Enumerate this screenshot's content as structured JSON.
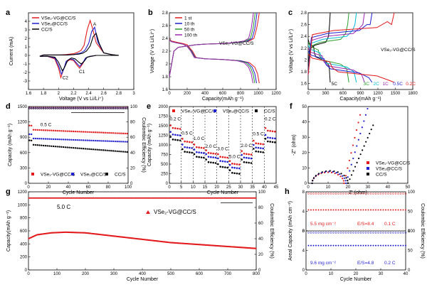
{
  "chart_data": [
    {
      "id": "a",
      "type": "line",
      "panel_label": "a",
      "xlabel": "Voltage (V vs Li/Li⁺)",
      "ylabel": "Current (mA)",
      "xlim": [
        1.6,
        3.0
      ],
      "ylim": [
        -4,
        5
      ],
      "xticks": [
        1.6,
        1.8,
        2.0,
        2.2,
        2.4,
        2.6,
        2.8,
        3.0
      ],
      "yticks": [
        -3,
        -2,
        -1,
        0,
        1,
        2,
        3,
        4
      ],
      "legend_position": "top-left",
      "annotations": [
        {
          "text": "A",
          "x": 2.46,
          "y": 3.5
        },
        {
          "text": "C2",
          "x": 2.05,
          "y": -2.8
        },
        {
          "text": "C1",
          "x": 2.27,
          "y": -2.1
        }
      ],
      "series": [
        {
          "name": "VSe₂-VG@CC/S",
          "color": "#e31a1c",
          "x": [
            1.75,
            1.85,
            1.95,
            2.0,
            2.03,
            2.06,
            2.1,
            2.15,
            2.2,
            2.25,
            2.28,
            2.32,
            2.36,
            2.42,
            2.5,
            2.6,
            2.7,
            2.8,
            2.7,
            2.6,
            2.5,
            2.45,
            2.42,
            2.38,
            2.34,
            2.3,
            2.25,
            2.2,
            2.1,
            2.0,
            1.9,
            1.8,
            1.75
          ],
          "y": [
            -0.1,
            -0.1,
            -0.4,
            -1.5,
            -2.6,
            -1.8,
            -0.8,
            -0.5,
            -0.6,
            -1.2,
            -1.5,
            -1.0,
            -0.3,
            -0.1,
            0,
            0,
            0,
            0,
            0.1,
            0.3,
            1.5,
            3.2,
            4.1,
            3.0,
            1.2,
            0.6,
            0.35,
            0.2,
            0.1,
            0.05,
            0.05,
            0.05,
            -0.1
          ]
        },
        {
          "name": "VSe₂@CC/S",
          "color": "#1f1fd1",
          "x": [
            1.75,
            1.85,
            1.95,
            2.0,
            2.04,
            2.07,
            2.1,
            2.15,
            2.2,
            2.25,
            2.28,
            2.32,
            2.36,
            2.42,
            2.5,
            2.6,
            2.7,
            2.8,
            2.7,
            2.6,
            2.52,
            2.48,
            2.44,
            2.4,
            2.35,
            2.3,
            2.25,
            2.2,
            2.1,
            2.0,
            1.9,
            1.8,
            1.75
          ],
          "y": [
            -0.1,
            -0.1,
            -0.3,
            -1.2,
            -2.2,
            -1.6,
            -0.7,
            -0.4,
            -0.5,
            -1.0,
            -1.3,
            -0.9,
            -0.3,
            -0.1,
            0,
            0,
            0,
            0,
            0.1,
            0.3,
            1.6,
            3.3,
            2.8,
            1.4,
            0.6,
            0.3,
            0.2,
            0.1,
            0.05,
            0.05,
            0.05,
            0.05,
            -0.1
          ]
        },
        {
          "name": "CC/S",
          "color": "#000000",
          "x": [
            1.75,
            1.85,
            1.95,
            2.0,
            2.05,
            2.08,
            2.12,
            2.17,
            2.22,
            2.27,
            2.3,
            2.34,
            2.38,
            2.44,
            2.5,
            2.6,
            2.7,
            2.8,
            2.7,
            2.6,
            2.54,
            2.5,
            2.46,
            2.42,
            2.37,
            2.32,
            2.27,
            2.2,
            2.1,
            2.0,
            1.9,
            1.8,
            1.75
          ],
          "y": [
            -0.1,
            -0.1,
            -0.2,
            -0.8,
            -1.8,
            -1.4,
            -0.6,
            -0.3,
            -0.4,
            -0.8,
            -1.0,
            -0.7,
            -0.2,
            -0.1,
            0,
            0,
            0,
            0,
            0.1,
            0.3,
            1.4,
            2.6,
            2.2,
            1.1,
            0.5,
            0.25,
            0.15,
            0.1,
            0.05,
            0.05,
            0.05,
            0.05,
            -0.1
          ]
        }
      ]
    },
    {
      "id": "b",
      "type": "line",
      "panel_label": "b",
      "xlabel": "Capacity(mAh g⁻¹)",
      "ylabel": "Voltage (V vs Li/Li⁺)",
      "xlim": [
        0,
        1200
      ],
      "ylim": [
        1.6,
        2.8
      ],
      "xticks": [
        0,
        200,
        400,
        600,
        800,
        1000,
        1200
      ],
      "yticks": [
        1.6,
        1.8,
        2.0,
        2.2,
        2.4,
        2.6,
        2.8
      ],
      "legend_position": "top-left",
      "annotations": [
        {
          "text": "VSe₂-VG@CC/S",
          "x": 560,
          "y": 2.3
        }
      ],
      "series": [
        {
          "name": "1 st",
          "color": "#e31a1c",
          "discharge_x": [
            0,
            20,
            80,
            150,
            200,
            260,
            300,
            400,
            600,
            800,
            900,
            960,
            990,
            1010
          ],
          "discharge_y": [
            2.4,
            2.36,
            2.34,
            2.32,
            2.3,
            2.2,
            2.1,
            2.08,
            2.07,
            2.05,
            2.02,
            1.95,
            1.85,
            1.7
          ],
          "charge_x": [
            0,
            50,
            100,
            200,
            300,
            400,
            600,
            800,
            900,
            950,
            980,
            1000,
            1010
          ],
          "charge_y": [
            1.8,
            2.2,
            2.26,
            2.28,
            2.3,
            2.31,
            2.32,
            2.34,
            2.36,
            2.4,
            2.55,
            2.7,
            2.8
          ]
        },
        {
          "name": "10 th",
          "color": "#1f1fd1",
          "discharge_x": [
            0,
            20,
            80,
            150,
            200,
            250,
            290,
            400,
            600,
            800,
            880,
            930,
            960,
            980
          ],
          "discharge_y": [
            2.39,
            2.35,
            2.33,
            2.31,
            2.28,
            2.2,
            2.1,
            2.08,
            2.07,
            2.05,
            2.02,
            1.95,
            1.85,
            1.7
          ],
          "charge_x": [
            0,
            50,
            100,
            200,
            300,
            400,
            600,
            800,
            880,
            930,
            960,
            975,
            985
          ],
          "charge_y": [
            1.8,
            2.2,
            2.26,
            2.28,
            2.3,
            2.31,
            2.32,
            2.34,
            2.36,
            2.4,
            2.55,
            2.7,
            2.8
          ]
        },
        {
          "name": "50 th",
          "color": "#2ca02c",
          "discharge_x": [
            0,
            20,
            80,
            150,
            200,
            245,
            285,
            400,
            600,
            780,
            860,
            910,
            940,
            960
          ],
          "discharge_y": [
            2.39,
            2.35,
            2.33,
            2.31,
            2.28,
            2.2,
            2.1,
            2.08,
            2.07,
            2.05,
            2.02,
            1.95,
            1.85,
            1.7
          ],
          "charge_x": [
            0,
            50,
            100,
            200,
            300,
            400,
            600,
            780,
            860,
            910,
            940,
            955,
            965
          ],
          "charge_y": [
            1.8,
            2.2,
            2.26,
            2.28,
            2.3,
            2.31,
            2.32,
            2.34,
            2.36,
            2.4,
            2.55,
            2.7,
            2.8
          ]
        },
        {
          "name": "100 th",
          "color": "#9c27b0",
          "discharge_x": [
            0,
            20,
            80,
            150,
            195,
            240,
            280,
            400,
            600,
            760,
            840,
            890,
            920,
            940
          ],
          "discharge_y": [
            2.38,
            2.35,
            2.33,
            2.31,
            2.28,
            2.2,
            2.1,
            2.08,
            2.07,
            2.05,
            2.02,
            1.95,
            1.85,
            1.7
          ],
          "charge_x": [
            0,
            50,
            100,
            200,
            300,
            400,
            600,
            760,
            840,
            890,
            920,
            935,
            945
          ],
          "charge_y": [
            1.8,
            2.2,
            2.26,
            2.28,
            2.3,
            2.31,
            2.32,
            2.34,
            2.36,
            2.4,
            2.55,
            2.7,
            2.8
          ]
        }
      ]
    },
    {
      "id": "c",
      "type": "line",
      "panel_label": "c",
      "xlabel": "Capacity(mAh g⁻¹)",
      "ylabel": "Voltage (V vs Li/Li⁺)",
      "xlim": [
        0,
        1800
      ],
      "ylim": [
        1.5,
        2.8
      ],
      "xticks": [
        0,
        300,
        600,
        900,
        1200,
        1500,
        1800
      ],
      "yticks": [
        1.6,
        1.8,
        2.0,
        2.2,
        2.4,
        2.6,
        2.8
      ],
      "annotations": [
        {
          "text": "VSe₂-VG@CC/S",
          "x": 1250,
          "y": 2.15
        }
      ],
      "series": [
        {
          "name": "5C",
          "color": "#000000",
          "cap": 380
        },
        {
          "name": "3C",
          "color": "#2ca02c",
          "cap": 700
        },
        {
          "name": "2C",
          "color": "#00bcd4",
          "cap": 830
        },
        {
          "name": "1C",
          "color": "#9c27b0",
          "cap": 970
        },
        {
          "name": "0.5C",
          "color": "#1f1fd1",
          "cap": 1100
        },
        {
          "name": "0.2C",
          "color": "#e31a1c",
          "cap": 1480
        }
      ]
    },
    {
      "id": "d",
      "type": "scatter",
      "panel_label": "d",
      "xlabel": "Cycle Number",
      "ylabel": "Capacity (mAh g⁻¹)",
      "y2label": "Coulombic Efficiency (%)",
      "xlim": [
        0,
        100
      ],
      "ylim": [
        0,
        1500
      ],
      "y2lim": [
        0,
        100
      ],
      "xticks": [
        0,
        20,
        40,
        60,
        80,
        100
      ],
      "yticks": [
        0,
        300,
        600,
        900,
        1200,
        1500
      ],
      "y2ticks": [
        0,
        20,
        40,
        60,
        80,
        100
      ],
      "annotations": [
        {
          "text": "0.5 C",
          "x": 12,
          "y": 1120
        }
      ],
      "legend_position": "bottom",
      "series": [
        {
          "name": "VSe₂-VG@CC/S",
          "color": "#e31a1c",
          "start": 1050,
          "end": 970,
          "ce": 98.5
        },
        {
          "name": "VSe₂@CC/S",
          "color": "#1f1fd1",
          "start": 880,
          "end": 810,
          "ce": 98
        },
        {
          "name": "CC/S",
          "color": "#000000",
          "start": 760,
          "end": 610,
          "ce": 97.5
        }
      ]
    },
    {
      "id": "e",
      "type": "scatter",
      "panel_label": "e",
      "xlabel": "Cycle Number",
      "ylabel": "Capacity (mAh g⁻¹)",
      "xlim": [
        0,
        45
      ],
      "ylim": [
        0,
        2000
      ],
      "xticks": [
        0,
        5,
        10,
        15,
        20,
        25,
        30,
        35,
        40,
        45
      ],
      "yticks": [
        0,
        250,
        500,
        750,
        1000,
        1250,
        1500,
        1750,
        2000
      ],
      "dashed_lines_x": [
        5,
        10,
        15,
        20,
        25,
        30,
        35,
        40
      ],
      "rate_labels": [
        {
          "text": "0.2 C",
          "x": 2.5,
          "y": 1640
        },
        {
          "text": "0.5 C",
          "x": 7.5,
          "y": 1270
        },
        {
          "text": "1.0 C",
          "x": 12.5,
          "y": 1130
        },
        {
          "text": "2.0 C",
          "x": 17.5,
          "y": 930
        },
        {
          "text": "3.0 C",
          "x": 22.5,
          "y": 860
        },
        {
          "text": "5.0 C",
          "x": 27.5,
          "y": 660
        },
        {
          "text": "2.0 C",
          "x": 32.5,
          "y": 940
        },
        {
          "text": "0.5 C",
          "x": 37.5,
          "y": 1250
        },
        {
          "text": "0.2 C",
          "x": 42.5,
          "y": 1640
        }
      ],
      "legend_position": "top",
      "series": [
        {
          "name": "VSe₂-VG@CC/S",
          "color": "#e31a1c",
          "levels": [
            1450,
            1100,
            950,
            800,
            700,
            520,
            780,
            1050,
            1380
          ]
        },
        {
          "name": "VSe₂@CC/S",
          "color": "#1f1fd1",
          "levels": [
            1280,
            950,
            820,
            700,
            590,
            420,
            680,
            940,
            1200
          ]
        },
        {
          "name": "CC/S",
          "color": "#000000",
          "levels": [
            1150,
            830,
            700,
            560,
            440,
            280,
            560,
            840,
            1100
          ]
        }
      ]
    },
    {
      "id": "f",
      "type": "scatter",
      "panel_label": "f",
      "xlabel": "Z' (ohm)",
      "ylabel": "-Z'' (ohm)",
      "xlim": [
        0,
        50
      ],
      "ylim": [
        0,
        50
      ],
      "xticks": [
        0,
        10,
        20,
        30,
        40,
        50
      ],
      "yticks": [
        0,
        10,
        20,
        30,
        40,
        50
      ],
      "legend_position": "bottom-right",
      "series": [
        {
          "name": "VSe₂-VG@CC/S",
          "color": "#e31a1c",
          "r0": 2,
          "rct": 16,
          "tail_slope": 5.5
        },
        {
          "name": "VSe₂@CC/S",
          "color": "#1f1fd1",
          "r0": 2,
          "rct": 17,
          "tail_slope": 4.5
        },
        {
          "name": "CC/S",
          "color": "#000000",
          "r0": 2,
          "rct": 18,
          "tail_slope": 3.0
        }
      ]
    },
    {
      "id": "g",
      "type": "scatter",
      "panel_label": "g",
      "xlabel": "Cycle Number",
      "ylabel": "Capacity(mAh g⁻¹)",
      "y2label": "Coulombic Efficiency (%)",
      "xlim": [
        0,
        800
      ],
      "ylim": [
        0,
        1200
      ],
      "y2lim": [
        0,
        100
      ],
      "xticks": [
        0,
        100,
        200,
        300,
        400,
        500,
        600,
        700,
        800
      ],
      "yticks": [
        0,
        200,
        400,
        600,
        800,
        1000,
        1200
      ],
      "y2ticks": [
        0,
        20,
        40,
        60,
        80,
        100
      ],
      "annotations": [
        {
          "text": "5.0 C",
          "x": 100,
          "y": 940
        }
      ],
      "legend_position": "top-right",
      "series": [
        {
          "name": "VSe₂-VG@CC/S",
          "color": "#e31a1c",
          "cap_x": [
            0,
            30,
            80,
            130,
            200,
            300,
            400,
            500,
            600,
            700,
            800
          ],
          "cap_y": [
            480,
            540,
            570,
            580,
            570,
            520,
            470,
            420,
            390,
            360,
            330
          ],
          "ce": 92
        }
      ]
    },
    {
      "id": "h",
      "type": "scatter",
      "panel_label": "h",
      "xlabel": "Cycle Number",
      "ylabel": "Areal Capacity (mAh cm⁻²)",
      "y2label": "Coulombic Efficiency (%)",
      "xlim": [
        0,
        40
      ],
      "ylim": [
        0,
        8
      ],
      "y2lim": [
        0,
        100
      ],
      "xticks": [
        0,
        10,
        20,
        30,
        40
      ],
      "subpanels": [
        {
          "loading": "5.5 mg cm⁻²",
          "es": "E/S=8.4",
          "rate": "0.1 C",
          "color": "#e31a1c",
          "capacity": 4.3,
          "ce": 99,
          "yticks": [
            0,
            4,
            8
          ]
        },
        {
          "loading": "9.6 mg cm⁻²",
          "es": "E/S=4.8",
          "rate": "0.2 C",
          "color": "#1f1fd1",
          "capacity": 5.0,
          "ce": 99,
          "yticks": [
            0,
            4,
            8
          ]
        }
      ]
    }
  ]
}
